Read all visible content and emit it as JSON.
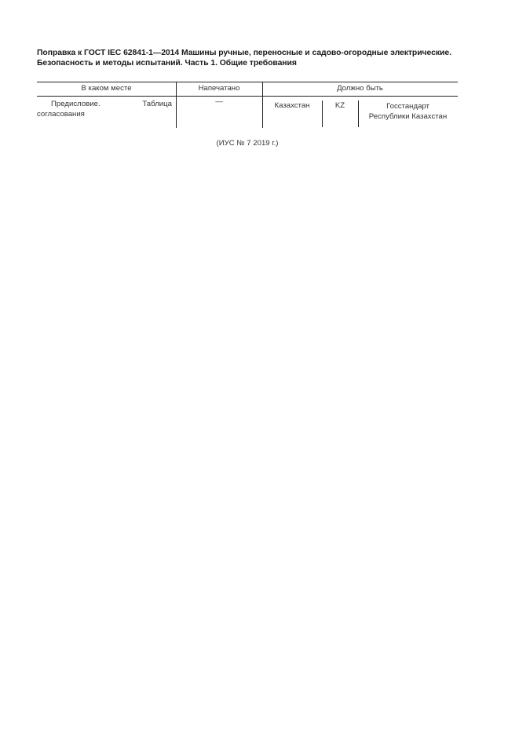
{
  "title": "Поправка к ГОСТ IEC 62841-1—2014 Машины ручные, переносные и садово-огородные электрические. Безопасность и методы испытаний. Часть 1. Общие требования",
  "table": {
    "headers": [
      "В каком месте",
      "Напечатано",
      "Должно быть"
    ],
    "row": {
      "place": "Предисловие. Таблица согласования",
      "printed": "—",
      "should_be": {
        "country": "Казахстан",
        "code": "KZ",
        "body_line1": "Госстандарт",
        "body_line2": "Республики Казахстан"
      }
    }
  },
  "footer": "(ИУС № 7  2019 г.)"
}
